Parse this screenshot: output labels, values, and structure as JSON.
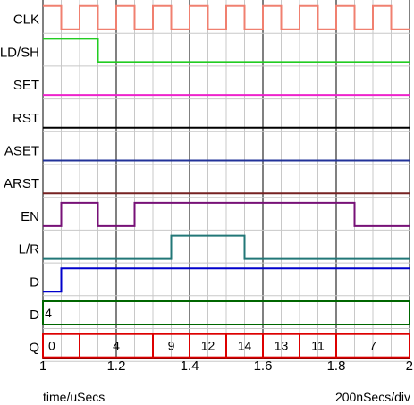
{
  "footer": {
    "time_label": "time/uSecs",
    "scale_label": "200nSecs/div"
  },
  "axis": {
    "start": 1,
    "end": 2,
    "step": 0.05,
    "major_ticks": [
      "1",
      "1.2",
      "1.4",
      "1.6",
      "1.8",
      "2"
    ]
  },
  "colors": {
    "grid": "#c8c8c8",
    "major": "#000000"
  },
  "signals": [
    {
      "name": "CLK",
      "type": "clock",
      "color": "#f08070",
      "period": 0.1,
      "high_first": true
    },
    {
      "name": "LD/SH",
      "type": "digital",
      "color": "#22cc22",
      "initial": 1,
      "changes": [
        1.15
      ]
    },
    {
      "name": "SET",
      "type": "digital",
      "color": "#ee22cc",
      "initial": 0,
      "changes": []
    },
    {
      "name": "RST",
      "type": "digital",
      "color": "#000000",
      "initial": 0,
      "changes": []
    },
    {
      "name": "ASET",
      "type": "digital",
      "color": "#223399",
      "initial": 0,
      "changes": []
    },
    {
      "name": "ARST",
      "type": "digital",
      "color": "#772222",
      "initial": 0,
      "changes": []
    },
    {
      "name": "EN",
      "type": "digital",
      "color": "#771177",
      "initial": 0,
      "changes": [
        1.05,
        1.15,
        1.25,
        1.85
      ]
    },
    {
      "name": "L/R",
      "type": "digital",
      "color": "#227777",
      "initial": 0,
      "changes": [
        1.35,
        1.55
      ]
    },
    {
      "name": "D",
      "type": "digital",
      "color": "#0000cc",
      "initial": 0,
      "changes": [
        1.05
      ]
    },
    {
      "name": "D",
      "type": "bus",
      "color": "#006600",
      "segments": [
        {
          "start": 1.0,
          "end": 2.0,
          "value": "4"
        }
      ]
    },
    {
      "name": "Q",
      "type": "bus",
      "color": "#dd0000",
      "segments": [
        {
          "start": 1.0,
          "end": 1.1,
          "value": "0"
        },
        {
          "start": 1.1,
          "end": 1.3,
          "value": "4"
        },
        {
          "start": 1.3,
          "end": 1.4,
          "value": "9"
        },
        {
          "start": 1.4,
          "end": 1.5,
          "value": "12"
        },
        {
          "start": 1.5,
          "end": 1.6,
          "value": "14"
        },
        {
          "start": 1.6,
          "end": 1.7,
          "value": "13"
        },
        {
          "start": 1.7,
          "end": 1.8,
          "value": "11"
        },
        {
          "start": 1.8,
          "end": 2.0,
          "value": "7"
        }
      ]
    }
  ]
}
